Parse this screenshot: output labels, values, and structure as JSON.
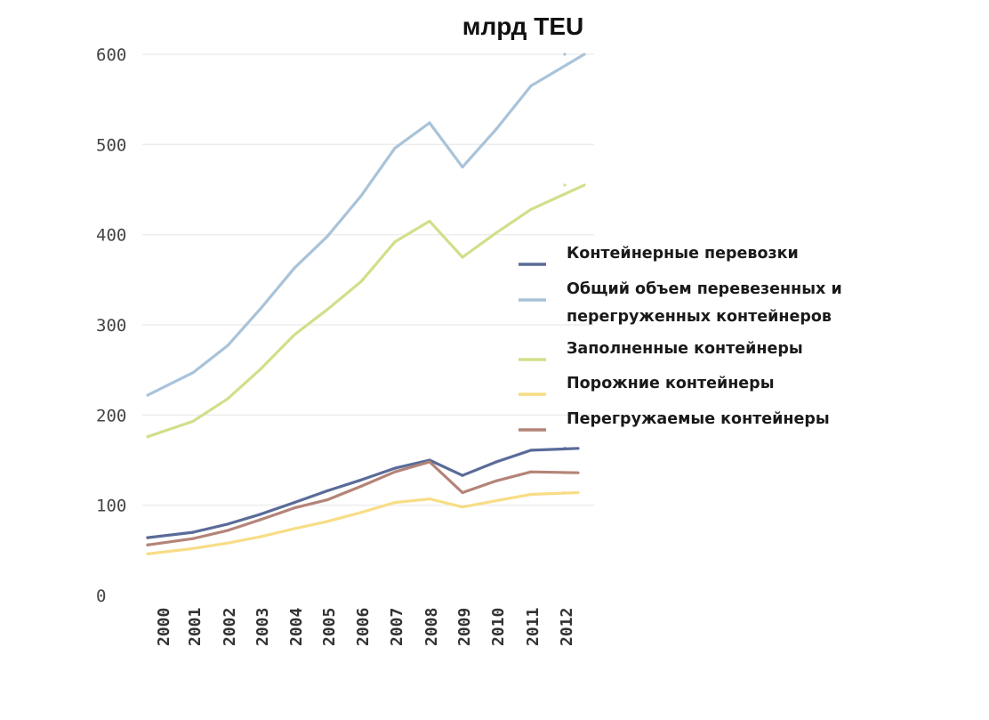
{
  "chart_data": {
    "type": "line",
    "title": "млрд  TEU",
    "xlabel": "",
    "ylabel": "",
    "ylim": [
      0,
      600
    ],
    "yticks": [
      "0",
      "100",
      "200",
      "300",
      "400",
      "500",
      "600"
    ],
    "grid": true,
    "legend_position": "right",
    "x": [
      "2000",
      "2001",
      "2002",
      "2003",
      "2004",
      "2005",
      "2006",
      "2007",
      "2008",
      "2009",
      "2010",
      "2011",
      "2012"
    ],
    "series": [
      {
        "name": "Контейнерные перевозки",
        "color": "#5a6b99",
        "values": [
          64,
          70,
          79,
          90,
          103,
          116,
          128,
          141,
          150,
          133,
          148,
          161,
          163
        ]
      },
      {
        "name": "Общий объем перевезенных и перегруженных контейнеров",
        "color": "#a9c3d9",
        "values": [
          222,
          247,
          277,
          318,
          363,
          398,
          443,
          496,
          524,
          475,
          517,
          565,
          600
        ]
      },
      {
        "name": "Заполненные контейнеры",
        "color": "#cfe08a",
        "values": [
          176,
          193,
          218,
          251,
          289,
          317,
          348,
          392,
          415,
          375,
          402,
          428,
          455
        ]
      },
      {
        "name": "Порожние контейнеры",
        "color": "#f7dd86",
        "values": [
          46,
          52,
          58,
          65,
          74,
          82,
          92,
          103,
          107,
          98,
          105,
          112,
          114
        ]
      },
      {
        "name": "Перегружаемые контейнеры",
        "color": "#b48478",
        "values": [
          56,
          63,
          72,
          84,
          97,
          106,
          121,
          137,
          148,
          114,
          127,
          137,
          136
        ]
      }
    ],
    "legend": [
      {
        "lines": [
          "Контейнерные перевозки"
        ],
        "color": "#5a6b99"
      },
      {
        "lines": [
          "Общий объем перевезенных и",
          "перегруженных контейнеров"
        ],
        "color": "#a9c3d9"
      },
      {
        "lines": [
          "Заполненные контейнеры"
        ],
        "color": "#cfe08a"
      },
      {
        "lines": [
          "Порожние контейнеры"
        ],
        "color": "#f7dd86"
      },
      {
        "lines": [
          "Перегружаемые контейнеры"
        ],
        "color": "#b48478"
      }
    ]
  }
}
